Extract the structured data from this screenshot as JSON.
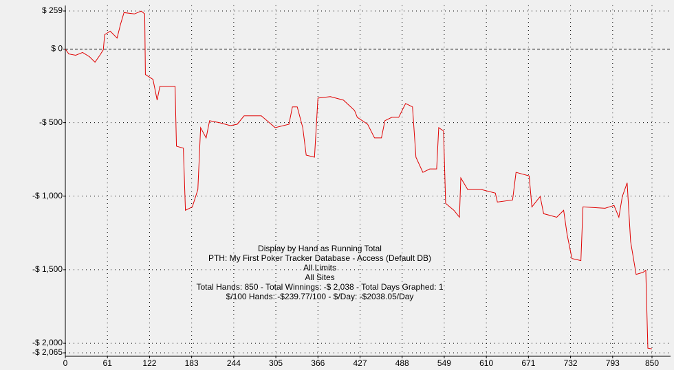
{
  "chart_data": {
    "type": "line",
    "annotations": [
      "Display by Hand as Running Total",
      "PTH: My First Poker Tracker Database - Access (Default DB)",
      "All Limits",
      "All Sites",
      "Total Hands: 850 - Total Winnings: -$ 2,038 - Total Days Graphed: 1",
      "$/100 Hands: -$239.77/100 - $/Day: -$2038.05/Day"
    ],
    "series": [
      {
        "name": "Running Total",
        "color": "#e00000",
        "x": [
          0,
          5,
          15,
          25,
          35,
          43,
          50,
          55,
          57,
          65,
          75,
          80,
          85,
          100,
          110,
          115,
          116,
          127,
          133,
          137,
          149,
          159,
          161,
          171,
          174,
          184,
          192,
          196,
          204,
          209,
          224,
          239,
          249,
          259,
          284,
          304,
          324,
          329,
          336,
          344,
          349,
          361,
          366,
          384,
          403,
          419,
          423,
          438,
          448,
          458,
          463,
          473,
          483,
          493,
          503,
          508,
          518,
          528,
          538,
          541,
          548,
          551,
          563,
          571,
          573,
          583,
          603,
          623,
          626,
          648,
          653,
          672,
          676,
          688,
          693,
          712,
          722,
          727,
          734,
          747,
          750,
          782,
          795,
          802,
          807,
          814,
          819,
          827,
          837,
          841,
          844,
          850
        ],
        "values": [
          0,
          -33,
          -42,
          -23,
          -52,
          -89,
          -42,
          -5,
          98,
          122,
          75,
          169,
          248,
          239,
          258,
          239,
          -173,
          -206,
          -347,
          -253,
          -253,
          -253,
          -660,
          -674,
          -1096,
          -1073,
          -955,
          -534,
          -604,
          -487,
          -501,
          -520,
          -511,
          -454,
          -454,
          -534,
          -511,
          -393,
          -393,
          -534,
          -721,
          -735,
          -333,
          -323,
          -347,
          -417,
          -464,
          -511,
          -604,
          -604,
          -487,
          -464,
          -464,
          -370,
          -393,
          -735,
          -838,
          -815,
          -815,
          -534,
          -557,
          -1049,
          -1096,
          -1143,
          -876,
          -955,
          -955,
          -979,
          -1040,
          -1026,
          -838,
          -862,
          -1073,
          -1002,
          -1119,
          -1143,
          -1096,
          -1260,
          -1424,
          -1438,
          -1073,
          -1082,
          -1063,
          -1143,
          -1002,
          -909,
          -1307,
          -1532,
          -1518,
          -1504,
          -2033,
          -2038
        ]
      }
    ],
    "xlim": [
      0,
      850
    ],
    "xticks": [
      0,
      61,
      122,
      183,
      244,
      305,
      366,
      427,
      488,
      549,
      610,
      671,
      732,
      793,
      850
    ],
    "ylim": [
      -2065,
      259
    ],
    "yticks": [
      {
        "value": 259,
        "label": "$ 259"
      },
      {
        "value": 0,
        "label": "$ 0"
      },
      {
        "value": -500,
        "label": "-$ 500"
      },
      {
        "value": -1000,
        "label": "-$ 1,000"
      },
      {
        "value": -1500,
        "label": "-$ 1,500"
      },
      {
        "value": -2000,
        "label": "-$ 2,000"
      },
      {
        "value": -2065,
        "label": "-$ 2,065"
      }
    ],
    "grid": true
  }
}
